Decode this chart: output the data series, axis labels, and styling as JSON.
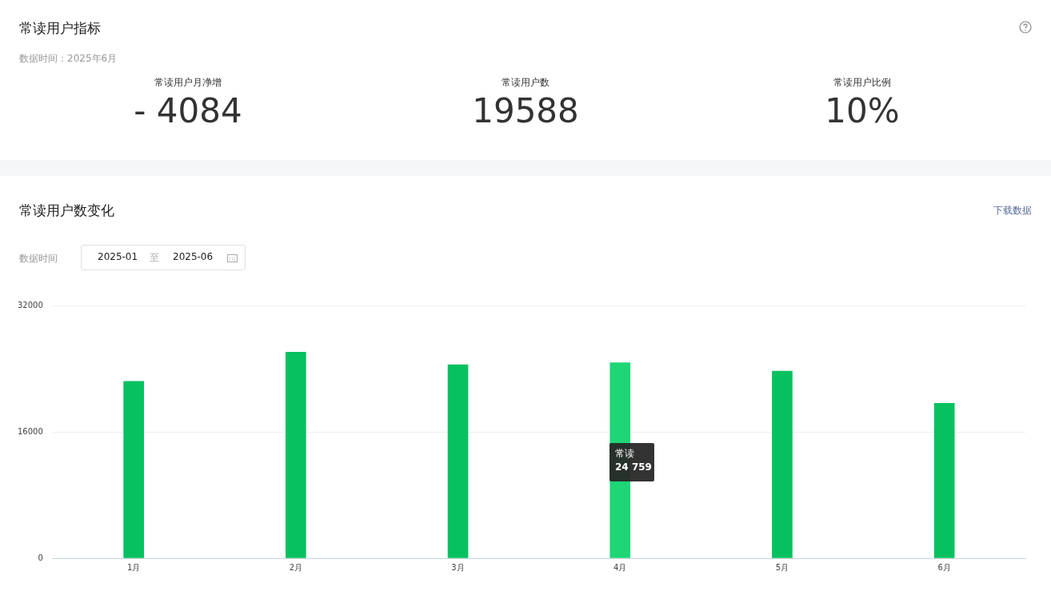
{
  "chart_data": [
    {
      "type": "other",
      "title": "常读用户指标",
      "subtitle": "数据时间：2025年6月",
      "annotations": [
        "常读用户月净增",
        "- 4084",
        "常读用户数",
        "19588",
        "常读用户比例",
        "10%"
      ]
    },
    {
      "type": "bar",
      "title": "常读用户数变化",
      "categories": [
        "1月",
        "2月",
        "3月",
        "4月",
        "5月",
        "6月"
      ],
      "values": [
        22400,
        26100,
        24500,
        24759,
        23700,
        19600
      ],
      "colors": [
        "#07c160",
        "#07c160",
        "#07c160",
        "#1ed676",
        "#07c160",
        "#07c160"
      ],
      "ylim": [
        0,
        32000
      ],
      "yticks": [
        0,
        16000,
        32000
      ],
      "grid": "y",
      "legend": false,
      "annotations": [
        "下载数据",
        "数据时间",
        "2025-01",
        "至",
        "2025-06",
        "常读",
        "24 759"
      ]
    }
  ]
}
